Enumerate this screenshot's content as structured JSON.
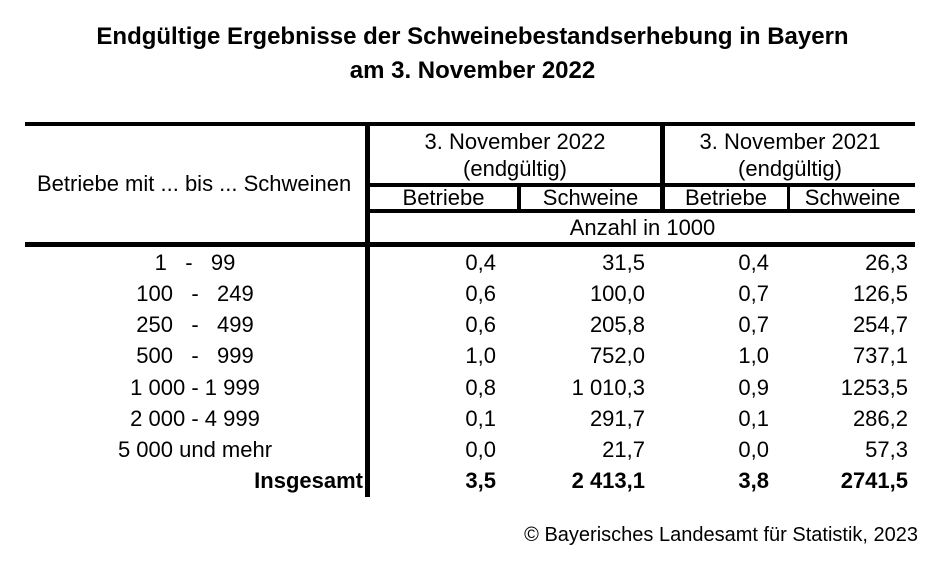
{
  "title": {
    "line1": "Endgültige Ergebnisse der Schweinebestandserhebung in Bayern",
    "line2": "am 3. November 2022"
  },
  "table": {
    "row_header": "Betriebe mit ... bis ... Schweinen",
    "unit_row": "Anzahl in 1000",
    "col_groups": [
      {
        "title": "3. November 2022",
        "subtitle": "(endgültig)",
        "col1": "Betriebe",
        "col2": "Schweine"
      },
      {
        "title": "3. November 2021",
        "subtitle": "(endgültig)",
        "col1": "Betriebe",
        "col2": "Schweine"
      }
    ],
    "rows": [
      {
        "label": "1   -   99",
        "values": [
          "0,4",
          "31,5",
          "0,4",
          "26,3"
        ]
      },
      {
        "label": "100   -   249",
        "values": [
          "0,6",
          "100,0",
          "0,7",
          "126,5"
        ]
      },
      {
        "label": "250   -   499",
        "values": [
          "0,6",
          "205,8",
          "0,7",
          "254,7"
        ]
      },
      {
        "label": "500   -   999",
        "values": [
          "1,0",
          "752,0",
          "1,0",
          "737,1"
        ]
      },
      {
        "label": "1 000 - 1 999",
        "values": [
          "0,8",
          "1 010,3",
          "0,9",
          "1253,5"
        ]
      },
      {
        "label": "2 000 - 4 999",
        "values": [
          "0,1",
          "291,7",
          "0,1",
          "286,2"
        ]
      },
      {
        "label": "5 000 und mehr",
        "values": [
          "0,0",
          "21,7",
          "0,0",
          "57,3"
        ]
      },
      {
        "label": "Insgesamt",
        "values": [
          "3,5",
          "2 413,1",
          "3,8",
          "2741,5"
        ]
      }
    ]
  },
  "footer": {
    "copyright": "© Bayerisches Landesamt für Statistik, 2023"
  },
  "colors": {
    "text": "#000000",
    "lines": "#000000",
    "background": "#ffffff"
  }
}
